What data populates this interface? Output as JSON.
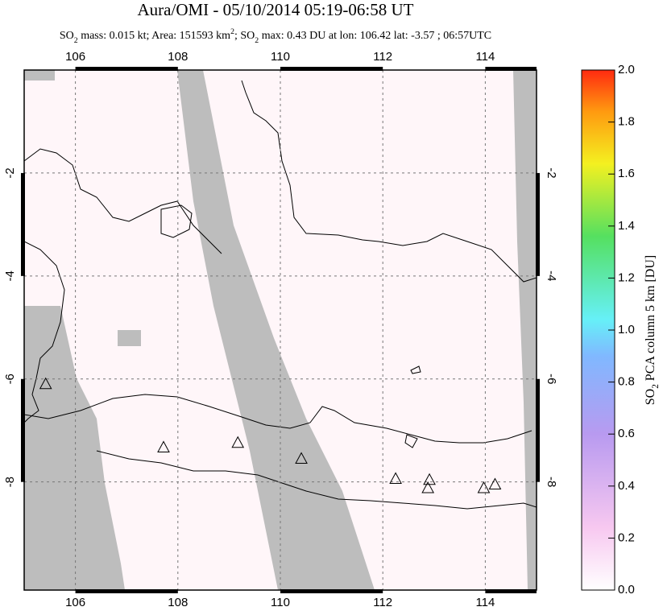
{
  "title": "Aura/OMI - 05/10/2014 05:19-06:58 UT",
  "subtitle": [
    {
      "text": "SO"
    },
    {
      "text": "2",
      "shift": "sub"
    },
    {
      "text": " mass: 0.015 kt; Area: 151593 km"
    },
    {
      "text": "2",
      "shift": "sup"
    },
    {
      "text": "; SO"
    },
    {
      "text": "2",
      "shift": "sub"
    },
    {
      "text": " max: 0.43 DU at lon: 106.42 lat: -3.57 ; 06:57UTC"
    }
  ],
  "map": {
    "xlim": [
      105,
      115
    ],
    "ylim": [
      -10.1,
      0
    ],
    "xticks": [
      106,
      108,
      110,
      112,
      114
    ],
    "yticks": [
      -2,
      -4,
      -6,
      -8
    ],
    "volcanoes": {
      "lon": [
        105.42,
        107.72,
        109.17,
        110.41,
        112.25,
        112.91,
        112.88,
        113.97,
        114.19
      ],
      "lat": [
        -6.11,
        -7.34,
        -7.25,
        -7.56,
        -7.95,
        -7.97,
        -8.13,
        -8.13,
        -8.06
      ]
    }
  },
  "colorbar": {
    "label": [
      {
        "text": "SO"
      },
      {
        "text": "2",
        "shift": "sub"
      },
      {
        "text": " PCA column 5 km [DU]"
      }
    ],
    "lim": [
      0,
      2
    ],
    "ticks": [
      {
        "value": 0,
        "label": "0.0"
      },
      {
        "value": 0.2,
        "label": "0.2"
      },
      {
        "value": 0.4,
        "label": "0.4"
      },
      {
        "value": 0.6,
        "label": "0.6"
      },
      {
        "value": 0.8,
        "label": "0.8"
      },
      {
        "value": 1,
        "label": "1.0"
      },
      {
        "value": 1.2,
        "label": "1.2"
      },
      {
        "value": 1.4,
        "label": "1.4"
      },
      {
        "value": 1.6,
        "label": "1.6"
      },
      {
        "value": 1.8,
        "label": "1.8"
      },
      {
        "value": 2,
        "label": "2.0"
      }
    ]
  }
}
